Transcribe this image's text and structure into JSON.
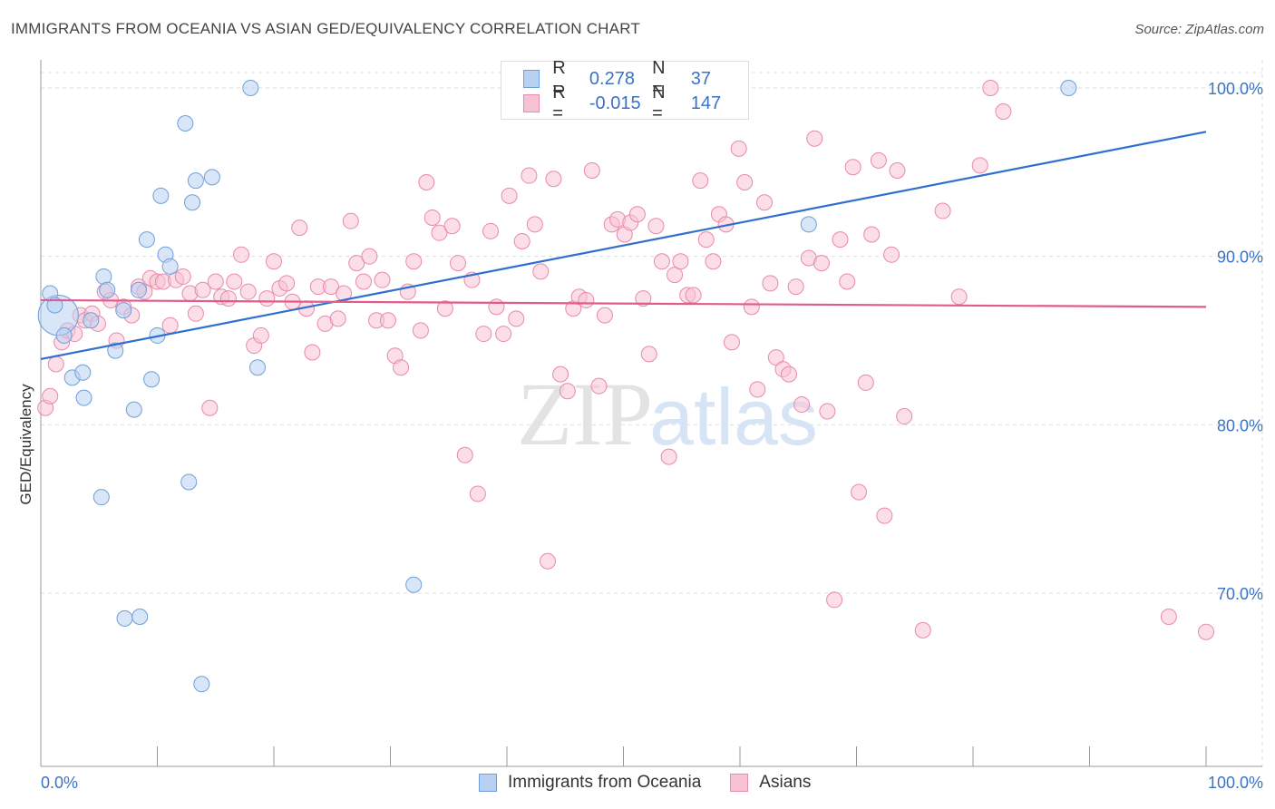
{
  "header": {
    "title": "IMMIGRANTS FROM OCEANIA VS ASIAN GED/EQUIVALENCY CORRELATION CHART",
    "source": "Source: ZipAtlas.com"
  },
  "watermark": {
    "zip": "ZIP",
    "atlas": "atlas"
  },
  "colors": {
    "blue_fill": "#b8d1f3",
    "blue_stroke": "#6f9fd8",
    "blue_line": "#2f6fd0",
    "pink_fill": "#f7c3d4",
    "pink_stroke": "#e88aaa",
    "pink_line": "#e05c8a",
    "axis_text": "#3a72c8",
    "grid": "#dddddd"
  },
  "legend": {
    "rows": [
      {
        "r_label": "R =",
        "r_value": "0.278",
        "n_label": "N =",
        "n_value": "37"
      },
      {
        "r_label": "R =",
        "r_value": "-0.015",
        "n_label": "N =",
        "n_value": "147"
      }
    ]
  },
  "bottom_legend": {
    "series1": "Immigrants from Oceania",
    "series2": "Asians"
  },
  "chart_data": {
    "type": "scatter",
    "title": "IMMIGRANTS FROM OCEANIA VS ASIAN GED/EQUIVALENCY CORRELATION CHART",
    "xlabel": "",
    "ylabel": "GED/Equivalency",
    "xlim": [
      0,
      100
    ],
    "ylim": [
      60.5,
      102
    ],
    "x_tick_labels": [
      "0.0%",
      "100.0%"
    ],
    "y_ticks": [
      70,
      80,
      90,
      100
    ],
    "y_tick_labels": [
      "70.0%",
      "80.0%",
      "90.0%",
      "100.0%"
    ],
    "grid": true,
    "series": [
      {
        "name": "Immigrants from Oceania",
        "color": "blue",
        "trend": {
          "x0": 0,
          "y0": 83.9,
          "x1": 100,
          "y1": 97.4
        },
        "points": [
          [
            1.5,
            86.5,
            2.6
          ],
          [
            0.8,
            87.8,
            1
          ],
          [
            1.2,
            87.1,
            1
          ],
          [
            2.0,
            85.3,
            1
          ],
          [
            2.7,
            82.8,
            1
          ],
          [
            3.6,
            83.1,
            1
          ],
          [
            3.7,
            81.6,
            1
          ],
          [
            4.3,
            86.2,
            1
          ],
          [
            5.4,
            88.8,
            1
          ],
          [
            5.7,
            88.0,
            1
          ],
          [
            6.4,
            84.4,
            1
          ],
          [
            7.1,
            86.8,
            1
          ],
          [
            8.0,
            80.9,
            1
          ],
          [
            8.4,
            88.0,
            1
          ],
          [
            9.1,
            91.0,
            1
          ],
          [
            9.5,
            82.7,
            1
          ],
          [
            10.0,
            85.3,
            1
          ],
          [
            10.3,
            93.6,
            1
          ],
          [
            10.7,
            90.1,
            1
          ],
          [
            11.1,
            89.4,
            1
          ],
          [
            12.4,
            97.9,
            1
          ],
          [
            12.7,
            76.6,
            1
          ],
          [
            13.0,
            93.2,
            1
          ],
          [
            13.3,
            94.5,
            1
          ],
          [
            14.7,
            94.7,
            1
          ],
          [
            18.0,
            100.0,
            1
          ],
          [
            18.6,
            83.4,
            1
          ],
          [
            5.2,
            75.7,
            1
          ],
          [
            7.2,
            68.5,
            1
          ],
          [
            8.5,
            68.6,
            1
          ],
          [
            13.8,
            64.6,
            1
          ],
          [
            32.0,
            70.5,
            1
          ],
          [
            65.9,
            91.9,
            1
          ],
          [
            88.2,
            100.0,
            1
          ]
        ]
      },
      {
        "name": "Asians",
        "color": "pink",
        "trend": {
          "x0": 0,
          "y0": 87.4,
          "x1": 100,
          "y1": 87.0
        },
        "points": [
          [
            0.4,
            81.0,
            1
          ],
          [
            0.8,
            81.7,
            1
          ],
          [
            1.3,
            83.6,
            1
          ],
          [
            1.8,
            84.9,
            1
          ],
          [
            2.3,
            85.6,
            1
          ],
          [
            2.9,
            85.4,
            1
          ],
          [
            3.4,
            86.5,
            1
          ],
          [
            3.8,
            86.2,
            1
          ],
          [
            4.4,
            86.6,
            1
          ],
          [
            4.9,
            86.0,
            1
          ],
          [
            5.5,
            87.9,
            1
          ],
          [
            6.0,
            87.4,
            1
          ],
          [
            6.5,
            85.0,
            1
          ],
          [
            7.1,
            87.0,
            1
          ],
          [
            7.8,
            86.5,
            1
          ],
          [
            8.4,
            88.2,
            1
          ],
          [
            8.9,
            87.9,
            1
          ],
          [
            9.4,
            88.7,
            1
          ],
          [
            10.0,
            88.5,
            1
          ],
          [
            10.5,
            88.5,
            1
          ],
          [
            11.1,
            85.9,
            1
          ],
          [
            11.6,
            88.6,
            1
          ],
          [
            12.2,
            88.8,
            1
          ],
          [
            12.8,
            87.8,
            1
          ],
          [
            13.3,
            86.6,
            1
          ],
          [
            13.9,
            88.0,
            1
          ],
          [
            14.5,
            81.0,
            1
          ],
          [
            15.0,
            88.5,
            1
          ],
          [
            15.5,
            87.6,
            1
          ],
          [
            16.1,
            87.5,
            1
          ],
          [
            16.6,
            88.5,
            1
          ],
          [
            17.2,
            90.1,
            1
          ],
          [
            17.8,
            87.9,
            1
          ],
          [
            18.3,
            84.7,
            1
          ],
          [
            18.9,
            85.3,
            1
          ],
          [
            19.4,
            87.5,
            1
          ],
          [
            20.0,
            89.7,
            1
          ],
          [
            20.5,
            88.1,
            1
          ],
          [
            21.1,
            88.4,
            1
          ],
          [
            21.6,
            87.3,
            1
          ],
          [
            22.2,
            91.7,
            1
          ],
          [
            22.8,
            86.9,
            1
          ],
          [
            23.3,
            84.3,
            1
          ],
          [
            23.8,
            88.2,
            1
          ],
          [
            24.4,
            86.0,
            1
          ],
          [
            24.9,
            88.2,
            1
          ],
          [
            25.5,
            86.3,
            1
          ],
          [
            26.0,
            87.8,
            1
          ],
          [
            26.6,
            92.1,
            1
          ],
          [
            27.1,
            89.6,
            1
          ],
          [
            27.7,
            88.5,
            1
          ],
          [
            28.2,
            90.0,
            1
          ],
          [
            28.8,
            86.2,
            1
          ],
          [
            29.3,
            88.6,
            1
          ],
          [
            29.8,
            86.2,
            1
          ],
          [
            30.4,
            84.1,
            1
          ],
          [
            30.9,
            83.4,
            1
          ],
          [
            31.5,
            87.9,
            1
          ],
          [
            32.0,
            89.7,
            1
          ],
          [
            32.6,
            85.6,
            1
          ],
          [
            33.1,
            94.4,
            1
          ],
          [
            33.6,
            92.3,
            1
          ],
          [
            34.2,
            91.4,
            1
          ],
          [
            34.7,
            86.9,
            1
          ],
          [
            35.3,
            91.8,
            1
          ],
          [
            35.8,
            89.6,
            1
          ],
          [
            36.4,
            78.2,
            1
          ],
          [
            37.0,
            88.6,
            1
          ],
          [
            37.5,
            75.9,
            1
          ],
          [
            38.0,
            85.4,
            1
          ],
          [
            38.6,
            91.5,
            1
          ],
          [
            39.1,
            87.0,
            1
          ],
          [
            39.7,
            85.4,
            1
          ],
          [
            40.2,
            93.6,
            1
          ],
          [
            40.8,
            86.3,
            1
          ],
          [
            41.3,
            90.9,
            1
          ],
          [
            41.9,
            94.8,
            1
          ],
          [
            42.4,
            91.9,
            1
          ],
          [
            42.9,
            89.1,
            1
          ],
          [
            43.5,
            71.9,
            1
          ],
          [
            44.0,
            94.6,
            1
          ],
          [
            44.6,
            83.0,
            1
          ],
          [
            45.2,
            82.0,
            1
          ],
          [
            45.7,
            86.9,
            1
          ],
          [
            46.2,
            87.6,
            1
          ],
          [
            46.8,
            87.4,
            1
          ],
          [
            47.3,
            95.1,
            1
          ],
          [
            47.9,
            82.3,
            1
          ],
          [
            48.4,
            86.5,
            1
          ],
          [
            49.0,
            91.9,
            1
          ],
          [
            49.5,
            92.2,
            1
          ],
          [
            50.1,
            91.3,
            1
          ],
          [
            50.6,
            92.0,
            1
          ],
          [
            51.2,
            92.5,
            1
          ],
          [
            51.7,
            87.5,
            1
          ],
          [
            52.2,
            84.2,
            1
          ],
          [
            52.8,
            91.8,
            1
          ],
          [
            53.3,
            89.7,
            1
          ],
          [
            53.9,
            78.1,
            1
          ],
          [
            54.4,
            88.9,
            1
          ],
          [
            54.9,
            89.7,
            1
          ],
          [
            55.5,
            87.7,
            1
          ],
          [
            56.0,
            87.7,
            1
          ],
          [
            56.6,
            94.5,
            1
          ],
          [
            57.1,
            91.0,
            1
          ],
          [
            57.7,
            89.7,
            1
          ],
          [
            58.2,
            92.5,
            1
          ],
          [
            58.8,
            91.9,
            1
          ],
          [
            59.3,
            84.9,
            1
          ],
          [
            59.9,
            96.4,
            1
          ],
          [
            60.4,
            94.4,
            1
          ],
          [
            61.0,
            87.0,
            1
          ],
          [
            61.5,
            82.1,
            1
          ],
          [
            62.1,
            93.2,
            1
          ],
          [
            62.6,
            88.4,
            1
          ],
          [
            63.1,
            84.0,
            1
          ],
          [
            63.7,
            83.3,
            1
          ],
          [
            64.2,
            83.0,
            1
          ],
          [
            64.8,
            88.2,
            1
          ],
          [
            65.3,
            81.2,
            1
          ],
          [
            65.9,
            89.9,
            1
          ],
          [
            66.4,
            97.0,
            1
          ],
          [
            67.0,
            89.6,
            1
          ],
          [
            67.5,
            80.8,
            1
          ],
          [
            68.1,
            69.6,
            1
          ],
          [
            68.6,
            91.0,
            1
          ],
          [
            69.2,
            88.5,
            1
          ],
          [
            69.7,
            95.3,
            1
          ],
          [
            70.2,
            76.0,
            1
          ],
          [
            70.8,
            82.5,
            1
          ],
          [
            71.3,
            91.3,
            1
          ],
          [
            71.9,
            95.7,
            1
          ],
          [
            72.4,
            74.6,
            1
          ],
          [
            73.0,
            90.1,
            1
          ],
          [
            73.5,
            95.1,
            1
          ],
          [
            74.1,
            80.5,
            1
          ],
          [
            75.7,
            67.8,
            1
          ],
          [
            77.4,
            92.7,
            1
          ],
          [
            78.8,
            87.6,
            1
          ],
          [
            80.6,
            95.4,
            1
          ],
          [
            81.5,
            100.0,
            1
          ],
          [
            82.6,
            98.6,
            1
          ],
          [
            96.8,
            68.6,
            1
          ],
          [
            100.0,
            67.7,
            1
          ]
        ]
      }
    ]
  }
}
